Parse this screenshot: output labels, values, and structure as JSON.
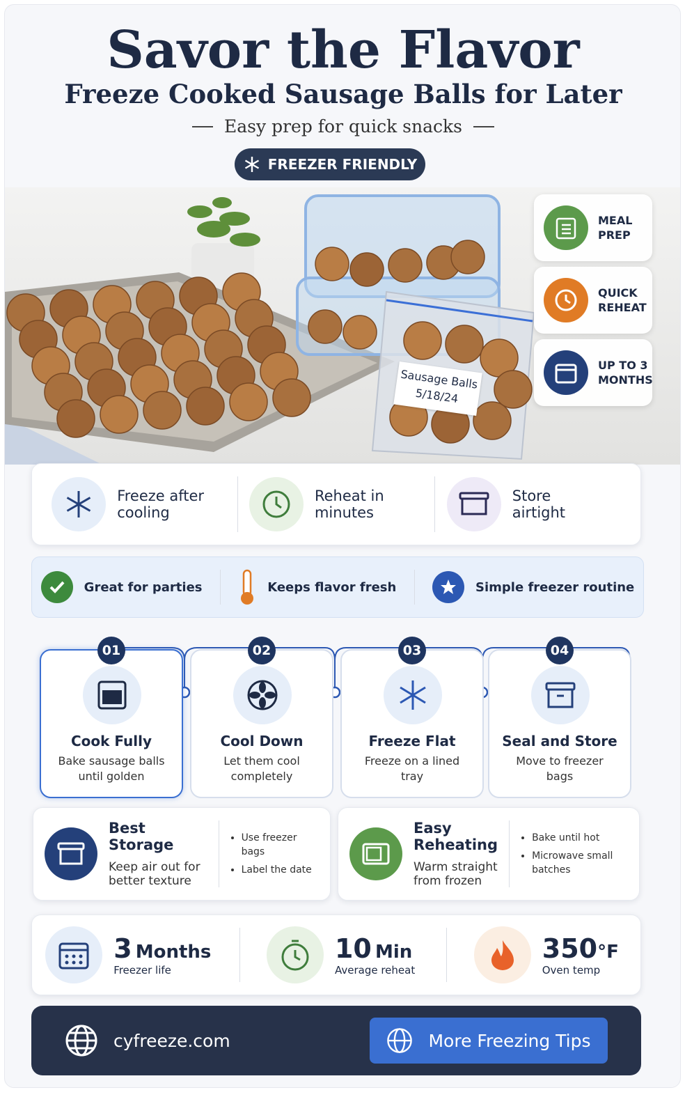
{
  "header": {
    "title": "Savor the Flavor",
    "subtitle": "Freeze Cooked Sausage Balls for Later",
    "tagline": "Easy prep for quick snacks",
    "badge": "FREEZER FRIENDLY"
  },
  "hero": {
    "bag_label": [
      "Sausage Balls",
      "5/18/24"
    ],
    "side_badges": [
      "MEAL PREP",
      "QUICK REHEAT",
      "UP TO 3 MONTHS"
    ]
  },
  "features": [
    "Freeze after cooling",
    "Reheat in minutes",
    "Store airtight"
  ],
  "highlights": [
    "Great for parties",
    "Keeps flavor fresh",
    "Simple freezer routine"
  ],
  "steps": [
    {
      "number": "01",
      "title": "Cook Fully",
      "desc": "Bake sausage balls until golden"
    },
    {
      "number": "02",
      "title": "Cool Down",
      "desc": "Let them cool completely"
    },
    {
      "number": "03",
      "title": "Freeze Flat",
      "desc": "Freeze on a lined tray"
    },
    {
      "number": "04",
      "title": "Seal and Store",
      "desc": "Move to freezer bags"
    }
  ],
  "tips": [
    {
      "title": "Best Storage",
      "desc": "Keep air out for better texture",
      "bullets": [
        "Use freezer bags",
        "Label the date"
      ]
    },
    {
      "title": "Easy Reheating",
      "desc": "Warm straight from frozen",
      "bullets": [
        "Bake until hot",
        "Microwave small batches"
      ]
    }
  ],
  "stats": [
    {
      "number": "3",
      "unit": "Months",
      "label": "Freezer life"
    },
    {
      "number": "10",
      "unit": "Min",
      "label": "Average reheat"
    },
    {
      "number": "350",
      "unit": "°F",
      "label": "Oven temp"
    }
  ],
  "footer": {
    "site": "cyfreeze.com",
    "button": "More Freezing Tips"
  }
}
